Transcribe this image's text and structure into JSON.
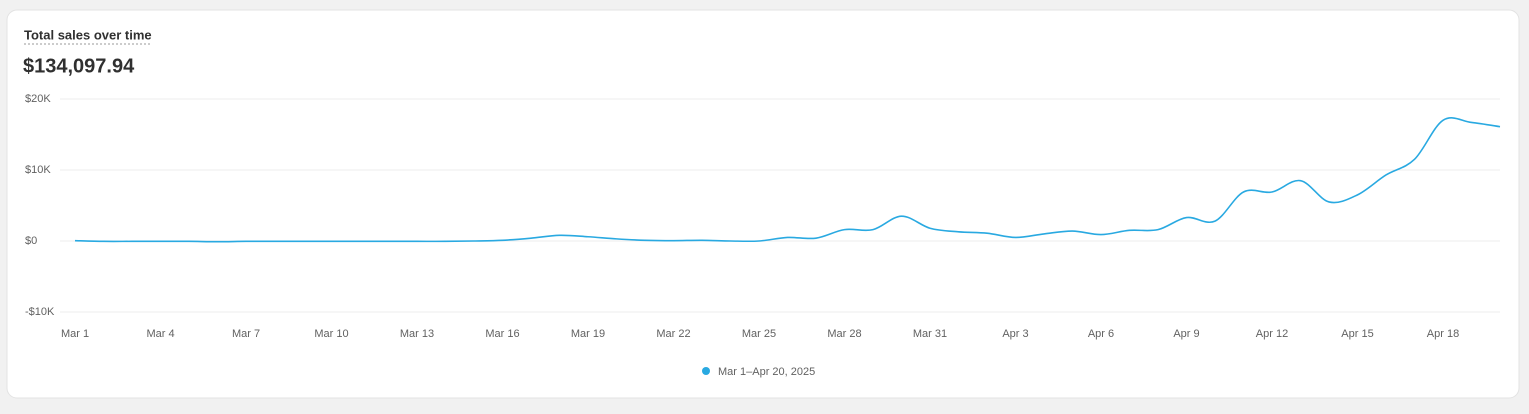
{
  "chart_data": {
    "type": "line",
    "title": "Total sales over time",
    "total": "$134,097.94",
    "categories": [
      "Mar 1",
      null,
      null,
      "Mar 4",
      null,
      null,
      "Mar 7",
      null,
      null,
      "Mar 10",
      null,
      null,
      "Mar 13",
      null,
      null,
      "Mar 16",
      null,
      null,
      "Mar 19",
      null,
      null,
      "Mar 22",
      null,
      null,
      "Mar 25",
      null,
      null,
      "Mar 28",
      null,
      null,
      "Mar 31",
      null,
      null,
      "Apr 3",
      null,
      null,
      "Apr 6",
      null,
      null,
      "Apr 9",
      null,
      null,
      "Apr 12",
      null,
      null,
      "Apr 15",
      null,
      null,
      "Apr 18",
      null,
      null
    ],
    "series": [
      {
        "name": "Mar 1–Apr 20, 2025",
        "color": "#29a9e1",
        "values": [
          50,
          -50,
          -50,
          -50,
          -50,
          -100,
          -50,
          -50,
          -50,
          -50,
          -50,
          -50,
          -50,
          -50,
          0,
          100,
          400,
          800,
          600,
          300,
          100,
          50,
          100,
          0,
          0,
          500,
          400,
          1600,
          1600,
          3500,
          1800,
          1300,
          1100,
          500,
          1000,
          1400,
          900,
          1500,
          1600,
          3300,
          2800,
          6900,
          6900,
          8500,
          5500,
          6500,
          9300,
          11500,
          17000,
          16700,
          16100
        ]
      }
    ],
    "ylim": [
      -10000,
      20000
    ],
    "yticks": [
      {
        "value": -10000,
        "label": "-$10K"
      },
      {
        "value": 0,
        "label": "$0"
      },
      {
        "value": 10000,
        "label": "$10K"
      },
      {
        "value": 20000,
        "label": "$20K"
      }
    ],
    "grid": true
  }
}
